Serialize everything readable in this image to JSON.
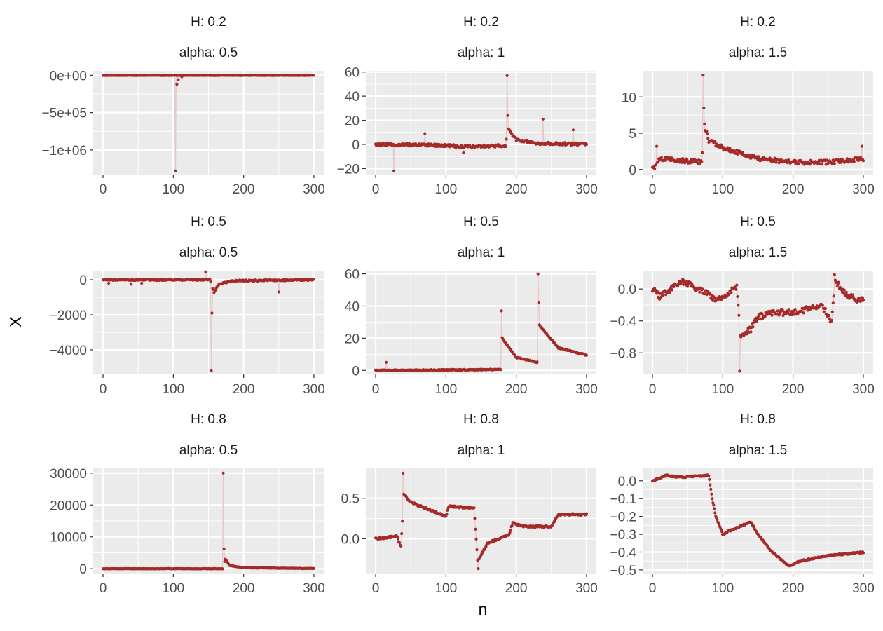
{
  "figure": {
    "xlabel": "n",
    "ylabel": "X",
    "point_color": "#a52a2a",
    "line_color": "#e8c9c9",
    "panel_bg": "#ebebeb",
    "grid_color": "#ffffff"
  },
  "chart_data": [
    {
      "type": "scatter",
      "facet_h": "H: 0.2",
      "facet_alpha": "alpha: 0.5",
      "xlim": [
        -14,
        314
      ],
      "xticks": [
        0,
        100,
        200,
        300
      ],
      "ylim": [
        -1330000,
        60000
      ],
      "yticks": [
        0,
        -500000,
        -1000000
      ],
      "ytick_labels": [
        "0e+00",
        "−5e+05",
        "−1e+06"
      ],
      "noise": 2000,
      "base": [
        [
          0,
          0
        ],
        [
          300,
          0
        ]
      ],
      "spikes": [
        [
          103,
          -1280000
        ],
        [
          105,
          -120000
        ],
        [
          107,
          -60000
        ],
        [
          112,
          -20000
        ]
      ]
    },
    {
      "type": "scatter",
      "facet_h": "H: 0.2",
      "facet_alpha": "alpha: 1",
      "xlim": [
        -14,
        314
      ],
      "xticks": [
        0,
        100,
        200,
        300
      ],
      "ylim": [
        -25,
        61
      ],
      "yticks": [
        60,
        40,
        20,
        0,
        -20
      ],
      "ytick_labels": [
        "60",
        "40",
        "20",
        "0",
        "−20"
      ],
      "noise": 1.1,
      "base": [
        [
          0,
          0
        ],
        [
          110,
          -1
        ],
        [
          115,
          -2
        ],
        [
          185,
          -1
        ],
        [
          188,
          13
        ],
        [
          200,
          4
        ],
        [
          230,
          1
        ],
        [
          300,
          0
        ]
      ],
      "spikes": [
        [
          26,
          -22
        ],
        [
          70,
          9
        ],
        [
          125,
          -7
        ],
        [
          187,
          57
        ],
        [
          188,
          24
        ],
        [
          238,
          21
        ],
        [
          281,
          12
        ]
      ]
    },
    {
      "type": "scatter",
      "facet_h": "H: 0.2",
      "facet_alpha": "alpha: 1.5",
      "xlim": [
        -14,
        314
      ],
      "xticks": [
        0,
        100,
        200,
        300
      ],
      "ylim": [
        -0.7,
        13.6
      ],
      "yticks": [
        10,
        5,
        0
      ],
      "ytick_labels": [
        "10",
        "5",
        "0"
      ],
      "noise": 0.3,
      "base": [
        [
          0,
          0
        ],
        [
          10,
          1.5
        ],
        [
          70,
          1
        ],
        [
          74,
          6
        ],
        [
          80,
          4
        ],
        [
          100,
          3
        ],
        [
          150,
          1.5
        ],
        [
          200,
          1
        ],
        [
          250,
          1
        ],
        [
          300,
          1.5
        ]
      ],
      "spikes": [
        [
          3,
          0.1
        ],
        [
          6,
          3.2
        ],
        [
          72,
          13
        ],
        [
          73,
          8.5
        ],
        [
          298,
          3.2
        ]
      ]
    },
    {
      "type": "scatter",
      "facet_h": "H: 0.5",
      "facet_alpha": "alpha: 0.5",
      "xlim": [
        -14,
        314
      ],
      "xticks": [
        0,
        100,
        200,
        300
      ],
      "ylim": [
        -5400,
        520
      ],
      "yticks": [
        0,
        -2000,
        -4000
      ],
      "ytick_labels": [
        "0",
        "−2000",
        "−4000"
      ],
      "noise": 40,
      "base": [
        [
          0,
          0
        ],
        [
          152,
          0
        ],
        [
          158,
          -700
        ],
        [
          165,
          -250
        ],
        [
          185,
          -60
        ],
        [
          300,
          0
        ]
      ],
      "spikes": [
        [
          146,
          450
        ],
        [
          154,
          -5200
        ],
        [
          155,
          -1900
        ],
        [
          8,
          -200
        ],
        [
          40,
          -250
        ],
        [
          55,
          -200
        ],
        [
          250,
          -700
        ]
      ]
    },
    {
      "type": "scatter",
      "facet_h": "H: 0.5",
      "facet_alpha": "alpha: 1",
      "xlim": [
        -14,
        314
      ],
      "xticks": [
        0,
        100,
        200,
        300
      ],
      "ylim": [
        -2.5,
        62
      ],
      "yticks": [
        60,
        40,
        20,
        0
      ],
      "ytick_labels": [
        "60",
        "40",
        "20",
        "0"
      ],
      "noise": 0.3,
      "base": [
        [
          0,
          0
        ],
        [
          178,
          0.5
        ],
        [
          180,
          20
        ],
        [
          200,
          8
        ],
        [
          230,
          5
        ],
        [
          233,
          28
        ],
        [
          260,
          14
        ],
        [
          300,
          9.5
        ]
      ],
      "spikes": [
        [
          15,
          5
        ],
        [
          179,
          37
        ],
        [
          231,
          60
        ],
        [
          232,
          42
        ]
      ]
    },
    {
      "type": "scatter",
      "facet_h": "H: 0.5",
      "facet_alpha": "alpha: 1.5",
      "xlim": [
        -14,
        314
      ],
      "xticks": [
        0,
        100,
        200,
        300
      ],
      "ylim": [
        -1.07,
        0.23
      ],
      "yticks": [
        0,
        -0.4,
        -0.8
      ],
      "ytick_labels": [
        "0.0",
        "−0.4",
        "−0.8"
      ],
      "noise": 0.04,
      "base": [
        [
          0,
          0
        ],
        [
          10,
          -0.1
        ],
        [
          40,
          0.1
        ],
        [
          80,
          -0.05
        ],
        [
          90,
          -0.15
        ],
        [
          120,
          0.02
        ],
        [
          125,
          -0.6
        ],
        [
          140,
          -0.5
        ],
        [
          150,
          -0.35
        ],
        [
          170,
          -0.3
        ],
        [
          200,
          -0.3
        ],
        [
          240,
          -0.2
        ],
        [
          255,
          -0.4
        ],
        [
          260,
          0.1
        ],
        [
          280,
          -0.1
        ],
        [
          300,
          -0.15
        ]
      ],
      "spikes": [
        [
          124,
          -1.03
        ],
        [
          126,
          -0.6
        ],
        [
          259,
          0.18
        ]
      ]
    },
    {
      "type": "scatter",
      "facet_h": "H: 0.8",
      "facet_alpha": "alpha: 0.5",
      "xlim": [
        -14,
        314
      ],
      "xticks": [
        0,
        100,
        200,
        300
      ],
      "ylim": [
        -1500,
        31500
      ],
      "yticks": [
        30000,
        20000,
        10000,
        0
      ],
      "ytick_labels": [
        "30000",
        "20000",
        "10000",
        "0"
      ],
      "noise": 60,
      "base": [
        [
          0,
          0
        ],
        [
          170,
          0
        ],
        [
          174,
          3000
        ],
        [
          180,
          1000
        ],
        [
          200,
          300
        ],
        [
          300,
          50
        ]
      ],
      "spikes": [
        [
          171,
          30000
        ],
        [
          172,
          6200
        ]
      ]
    },
    {
      "type": "scatter",
      "facet_h": "H: 0.8",
      "facet_alpha": "alpha: 1",
      "xlim": [
        -14,
        314
      ],
      "xticks": [
        0,
        100,
        200,
        300
      ],
      "ylim": [
        -0.43,
        0.87
      ],
      "yticks": [
        0.5,
        0
      ],
      "ytick_labels": [
        "0.5",
        "0.0"
      ],
      "noise": 0.012,
      "base": [
        [
          0,
          0
        ],
        [
          30,
          0.03
        ],
        [
          36,
          -0.1
        ],
        [
          40,
          0.55
        ],
        [
          50,
          0.45
        ],
        [
          100,
          0.28
        ],
        [
          104,
          0.4
        ],
        [
          140,
          0.38
        ],
        [
          145,
          -0.28
        ],
        [
          160,
          -0.05
        ],
        [
          190,
          0.05
        ],
        [
          195,
          0.2
        ],
        [
          210,
          0.15
        ],
        [
          250,
          0.15
        ],
        [
          260,
          0.3
        ],
        [
          300,
          0.3
        ]
      ],
      "spikes": [
        [
          39,
          0.81
        ],
        [
          146,
          -0.37
        ]
      ]
    },
    {
      "type": "scatter",
      "facet_h": "H: 0.8",
      "facet_alpha": "alpha: 1.5",
      "xlim": [
        -14,
        314
      ],
      "xticks": [
        0,
        100,
        200,
        300
      ],
      "ylim": [
        -0.52,
        0.07
      ],
      "yticks": [
        0,
        -0.1,
        -0.2,
        -0.3,
        -0.4,
        -0.5
      ],
      "ytick_labels": [
        "0.0",
        "−0.1",
        "−0.2",
        "−0.3",
        "−0.4",
        "−0.5"
      ],
      "noise": 0.004,
      "base": [
        [
          0,
          0
        ],
        [
          20,
          0.03
        ],
        [
          40,
          0.02
        ],
        [
          80,
          0.03
        ],
        [
          85,
          -0.1
        ],
        [
          90,
          -0.2
        ],
        [
          100,
          -0.3
        ],
        [
          110,
          -0.28
        ],
        [
          140,
          -0.23
        ],
        [
          150,
          -0.3
        ],
        [
          170,
          -0.4
        ],
        [
          195,
          -0.48
        ],
        [
          210,
          -0.45
        ],
        [
          250,
          -0.42
        ],
        [
          300,
          -0.4
        ]
      ],
      "spikes": []
    }
  ]
}
